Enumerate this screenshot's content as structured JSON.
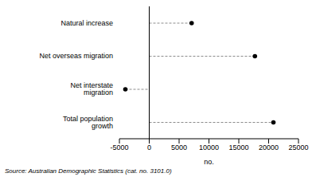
{
  "chart_data": {
    "type": "dot",
    "orientation": "horizontal",
    "categories": [
      "Natural increase",
      "Net overseas migration",
      "Net interstate migration",
      "Total population growth"
    ],
    "values": [
      7100,
      17700,
      -4000,
      20800
    ],
    "color": "#000000",
    "xlim": [
      -5000,
      25000
    ],
    "xticks": [
      -5000,
      0,
      5000,
      10000,
      15000,
      20000,
      25000
    ],
    "x_label": "no.",
    "annotations": [
      "Source: Australian Demographic Statistics (cat. no. 3101.0)"
    ],
    "grid": false
  }
}
